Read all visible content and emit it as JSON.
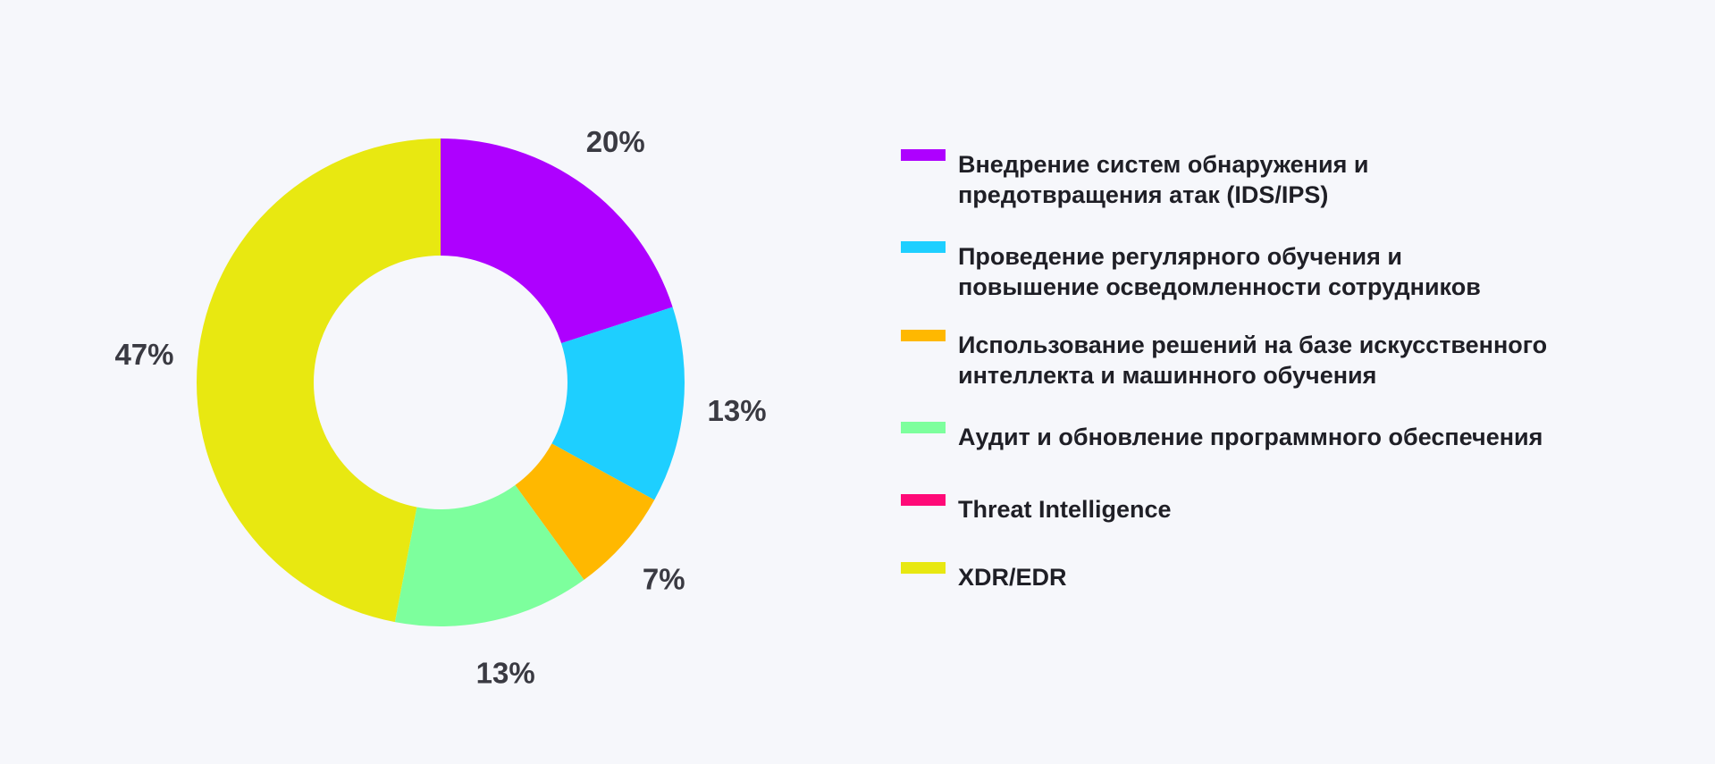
{
  "chart_data": {
    "type": "pie",
    "variant": "donut",
    "title": "",
    "value_suffix": "%",
    "slices": [
      {
        "label": "Внедрение систем обнаружения и\nпредотвращения атак (IDS/IPS)",
        "value": 20,
        "display": "20%",
        "color": "#ae00ff"
      },
      {
        "label": "Проведение регулярного обучения и\nповышение осведомленности сотрудников",
        "value": 13,
        "display": "13%",
        "color": "#1ecfff"
      },
      {
        "label": "Использование решений на базе искусственного\nинтеллекта и машинного обучения",
        "value": 7,
        "display": "7%",
        "color": "#ffb800"
      },
      {
        "label": "Аудит и обновление программного обеспечения",
        "value": 13,
        "display": "13%",
        "color": "#7dff9d"
      },
      {
        "label": "Threat Intelligence",
        "value": 0,
        "display": "",
        "color": "#ff0a78"
      },
      {
        "label": "XDR/EDR",
        "value": 47,
        "display": "47%",
        "color": "#e8e811"
      }
    ],
    "legend_position": "right",
    "start_angle": "top",
    "direction": "clockwise"
  }
}
